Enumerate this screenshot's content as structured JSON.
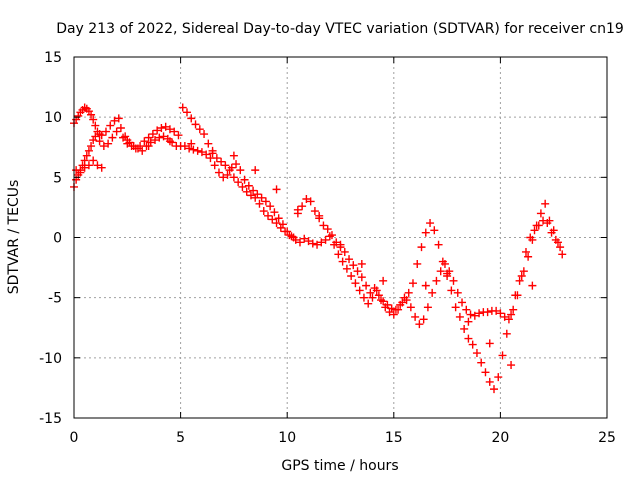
{
  "chart_data": {
    "type": "scatter",
    "title": "Day 213 of 2022, Sidereal Day-to-day VTEC variation (SDTVAR) for receiver cn19",
    "xlabel": "GPS time / hours",
    "ylabel": "SDTVAR / TECUs",
    "xlim": [
      0,
      25
    ],
    "ylim": [
      -15,
      15
    ],
    "xticks": [
      "0",
      "5",
      "10",
      "15",
      "20",
      "25"
    ],
    "yticks": [
      "15",
      "10",
      "5",
      "0",
      "-5",
      "-10",
      "-15"
    ],
    "grid": true,
    "marker": "+",
    "color": "#ff0000",
    "series": [
      {
        "name": "cn19 SDTVAR",
        "x": [
          0.0,
          0.1,
          0.2,
          0.3,
          0.4,
          0.5,
          0.6,
          0.7,
          0.8,
          0.9,
          1.0,
          1.1,
          1.2,
          1.3,
          1.5,
          1.7,
          1.9,
          2.1,
          2.3,
          2.5,
          2.7,
          2.9,
          3.1,
          3.3,
          3.5,
          3.7,
          3.9,
          4.1,
          4.3,
          4.5,
          4.7,
          4.9,
          5.1,
          5.3,
          5.5,
          5.7,
          5.9,
          6.1,
          6.3,
          6.5,
          6.7,
          6.9,
          7.1,
          7.3,
          7.5,
          7.7,
          7.9,
          8.1,
          8.3,
          8.5,
          8.7,
          8.9,
          9.1,
          9.3,
          9.5,
          9.7,
          9.9,
          10.1,
          10.3,
          10.5,
          10.7,
          10.9,
          11.1,
          11.3,
          11.5,
          11.7,
          11.9,
          12.1,
          12.3,
          12.5,
          12.7,
          12.9,
          13.1,
          13.3,
          13.5,
          13.7,
          13.9,
          14.1,
          14.3,
          14.5,
          14.7,
          14.9,
          15.1,
          15.3,
          15.5,
          15.7,
          15.9,
          16.1,
          16.3,
          16.5,
          16.7,
          16.9,
          17.1,
          17.3,
          17.5,
          17.7,
          17.9,
          18.1,
          18.3,
          18.5,
          18.7,
          18.9,
          19.1,
          19.3,
          19.5,
          19.7,
          19.9,
          20.1,
          20.3,
          20.5,
          20.7,
          20.9,
          21.1,
          21.3,
          21.5,
          21.7,
          21.9,
          22.1,
          22.3,
          22.5,
          22.7,
          22.9,
          0.0,
          0.1,
          0.2,
          0.3,
          0.4,
          0.5,
          0.6,
          0.7,
          0.8,
          0.9,
          1.0,
          1.2,
          1.4,
          1.6,
          1.8,
          2.0,
          2.2,
          2.4,
          2.6,
          2.8,
          3.0,
          3.2,
          3.4,
          3.6,
          3.8,
          4.0,
          4.2,
          4.4,
          4.6,
          4.8,
          5.0,
          5.2,
          5.4,
          5.6,
          5.8,
          6.0,
          6.2,
          6.4,
          6.6,
          6.8,
          7.0,
          7.2,
          7.4,
          7.6,
          7.8,
          8.0,
          8.2,
          8.4,
          8.6,
          8.8,
          9.0,
          9.2,
          9.4,
          9.6,
          9.8,
          10.0,
          10.2,
          10.4,
          10.6,
          10.8,
          11.0,
          11.2,
          11.4,
          11.6,
          11.8,
          12.0,
          12.2,
          12.4,
          12.6,
          12.8,
          13.0,
          13.2,
          13.4,
          13.6,
          13.8,
          14.0,
          14.2,
          14.4,
          14.6,
          14.8,
          15.0,
          15.2,
          15.4,
          15.6,
          15.8,
          16.0,
          16.2,
          16.4,
          16.6,
          16.8,
          17.0,
          17.2,
          17.4,
          17.6,
          17.8,
          18.0,
          18.2,
          18.4,
          18.6,
          18.8,
          19.0,
          19.2,
          19.4,
          19.6,
          19.8,
          20.0,
          20.2,
          20.4,
          20.6,
          20.8,
          21.0,
          21.2,
          21.4,
          21.6,
          21.8,
          22.0,
          22.2,
          22.4,
          22.6,
          22.8,
          0.1,
          0.3,
          0.5,
          0.7,
          0.9,
          1.1,
          1.3,
          2.5,
          3.5,
          4.5,
          5.5,
          6.5,
          7.5,
          8.5,
          9.5,
          10.5,
          11.5,
          12.5,
          13.5,
          14.5,
          16.5,
          17.5,
          18.5,
          19.5,
          20.5,
          21.5
        ],
        "y": [
          9.5,
          9.8,
          10.1,
          10.4,
          10.6,
          10.8,
          10.7,
          10.5,
          10.2,
          9.8,
          9.3,
          8.8,
          8.6,
          8.5,
          8.8,
          9.3,
          9.7,
          9.9,
          8.3,
          7.8,
          7.6,
          7.4,
          7.6,
          8.0,
          8.3,
          8.6,
          8.9,
          9.1,
          9.2,
          9.0,
          8.8,
          8.5,
          10.8,
          10.4,
          9.9,
          9.4,
          9.0,
          8.6,
          7.8,
          7.2,
          6.6,
          6.3,
          6.0,
          5.6,
          5.0,
          4.6,
          4.2,
          3.8,
          3.5,
          3.3,
          2.8,
          2.2,
          1.8,
          1.5,
          1.2,
          0.8,
          0.5,
          0.2,
          0.0,
          2.0,
          2.6,
          3.2,
          3.0,
          2.2,
          1.6,
          1.0,
          0.7,
          0.2,
          -0.4,
          -0.8,
          -1.2,
          -1.8,
          -2.3,
          -2.8,
          -3.3,
          -4.0,
          -4.6,
          -4.2,
          -4.8,
          -5.3,
          -5.6,
          -5.9,
          -6.0,
          -5.6,
          -5.0,
          -4.6,
          -3.8,
          -2.2,
          -0.8,
          0.4,
          1.2,
          0.6,
          -0.6,
          -2.0,
          -3.0,
          -4.4,
          -5.8,
          -6.6,
          -7.6,
          -8.4,
          -8.9,
          -9.6,
          -10.4,
          -11.2,
          -12.0,
          -12.6,
          -11.6,
          -9.8,
          -8.0,
          -6.4,
          -4.8,
          -3.6,
          -2.8,
          -1.6,
          -0.2,
          1.0,
          2.0,
          2.8,
          1.4,
          0.6,
          -0.4,
          -1.4,
          4.2,
          4.8,
          5.2,
          5.6,
          6.0,
          6.4,
          6.8,
          7.2,
          7.6,
          8.1,
          8.4,
          8.0,
          7.6,
          7.8,
          8.3,
          8.8,
          9.1,
          8.4,
          7.9,
          7.6,
          7.4,
          7.2,
          7.6,
          7.9,
          8.1,
          8.3,
          8.4,
          8.2,
          7.9,
          7.6,
          7.6,
          7.6,
          7.4,
          7.3,
          7.2,
          7.1,
          6.9,
          6.6,
          6.0,
          5.4,
          5.0,
          5.2,
          5.8,
          6.1,
          5.6,
          4.8,
          4.3,
          3.9,
          3.6,
          3.3,
          3.0,
          2.6,
          2.1,
          1.6,
          1.1,
          0.5,
          0.1,
          -0.2,
          -0.4,
          -0.1,
          -0.3,
          -0.5,
          -0.6,
          -0.4,
          -0.2,
          0.1,
          -0.6,
          -1.4,
          -2.0,
          -2.6,
          -3.2,
          -3.8,
          -4.4,
          -5.0,
          -5.5,
          -5.0,
          -4.4,
          -5.2,
          -5.8,
          -6.2,
          -6.4,
          -6.0,
          -5.4,
          -5.2,
          -5.8,
          -6.6,
          -7.2,
          -6.8,
          -5.8,
          -4.6,
          -3.6,
          -2.8,
          -2.2,
          -2.8,
          -3.6,
          -4.6,
          -5.4,
          -6.0,
          -6.4,
          -6.5,
          -6.3,
          -6.2,
          -6.2,
          -6.1,
          -6.1,
          -6.3,
          -6.6,
          -6.8,
          -6.0,
          -4.8,
          -3.2,
          -1.2,
          0.0,
          0.6,
          1.0,
          1.4,
          1.2,
          0.4,
          -0.2,
          -0.8,
          5.6,
          5.4,
          5.8,
          6.0,
          6.4,
          6.0,
          5.8,
          8.1,
          7.6,
          8.0,
          7.8,
          7.0,
          6.8,
          5.6,
          4.0,
          2.3,
          1.8,
          -0.6,
          -2.2,
          -3.6,
          -4.0,
          -3.2,
          -7.0,
          -8.8,
          -10.6,
          -4.0
        ]
      }
    ]
  }
}
